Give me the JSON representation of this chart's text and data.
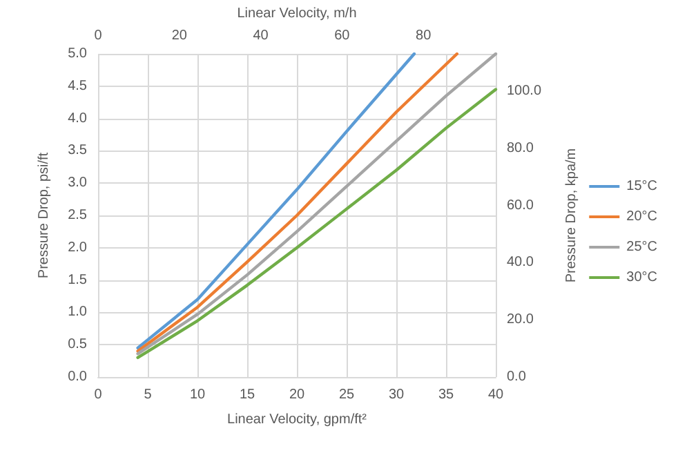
{
  "chart_data": {
    "type": "line",
    "xlabel": "Linear Velocity, gpm/ft²",
    "ylabel": "Pressure Drop, psi/ft",
    "y2label": "Pressure Drop, kpa/m",
    "x2label": "Linear Velocity, m/h",
    "xlim": [
      0,
      40
    ],
    "xticks": [
      0,
      5,
      10,
      15,
      20,
      25,
      30,
      35,
      40
    ],
    "ylim": [
      0,
      5
    ],
    "yticks": [
      {
        "value": 0,
        "label": "0.0"
      },
      {
        "value": 0.5,
        "label": "0.5"
      },
      {
        "value": 1,
        "label": "1.0"
      },
      {
        "value": 1.5,
        "label": "1.5"
      },
      {
        "value": 2,
        "label": "2.0"
      },
      {
        "value": 2.5,
        "label": "2.5"
      },
      {
        "value": 3,
        "label": "3.0"
      },
      {
        "value": 3.5,
        "label": "3.5"
      },
      {
        "value": 4,
        "label": "4.0"
      },
      {
        "value": 4.5,
        "label": "4.5"
      },
      {
        "value": 5,
        "label": "5.0"
      }
    ],
    "x2lim": [
      0,
      97.8
    ],
    "x2ticks": [
      0,
      20,
      40,
      60,
      80
    ],
    "y2lim": [
      0,
      113.1
    ],
    "y2ticks": [
      {
        "value": 0,
        "label": "0.0"
      },
      {
        "value": 20,
        "label": "20.0"
      },
      {
        "value": 40,
        "label": "40.0"
      },
      {
        "value": 60,
        "label": "60.0"
      },
      {
        "value": 80,
        "label": "80.0"
      },
      {
        "value": 100,
        "label": "100.0"
      }
    ],
    "grid": true,
    "legend": "right",
    "marker": "none",
    "line_style": "solid",
    "series": [
      {
        "name": "15°C",
        "color": "#5b9bd5",
        "x": [
          4,
          10,
          15,
          20,
          25,
          31.8
        ],
        "values": [
          0.45,
          1.2,
          2.05,
          2.9,
          3.8,
          5.0
        ]
      },
      {
        "name": "20°C",
        "color": "#ed7d31",
        "x": [
          4,
          10,
          15,
          20,
          25,
          30,
          36.1
        ],
        "values": [
          0.4,
          1.08,
          1.78,
          2.5,
          3.3,
          4.1,
          5.0
        ]
      },
      {
        "name": "25°C",
        "color": "#a5a5a5",
        "x": [
          4,
          10,
          15,
          20,
          25,
          30,
          35,
          40
        ],
        "values": [
          0.36,
          0.97,
          1.58,
          2.25,
          2.95,
          3.65,
          4.35,
          5.0
        ]
      },
      {
        "name": "30°C",
        "color": "#70ad47",
        "x": [
          4,
          10,
          15,
          20,
          25,
          30,
          35,
          40
        ],
        "values": [
          0.3,
          0.87,
          1.42,
          2.0,
          2.6,
          3.2,
          3.85,
          4.45
        ]
      }
    ]
  }
}
